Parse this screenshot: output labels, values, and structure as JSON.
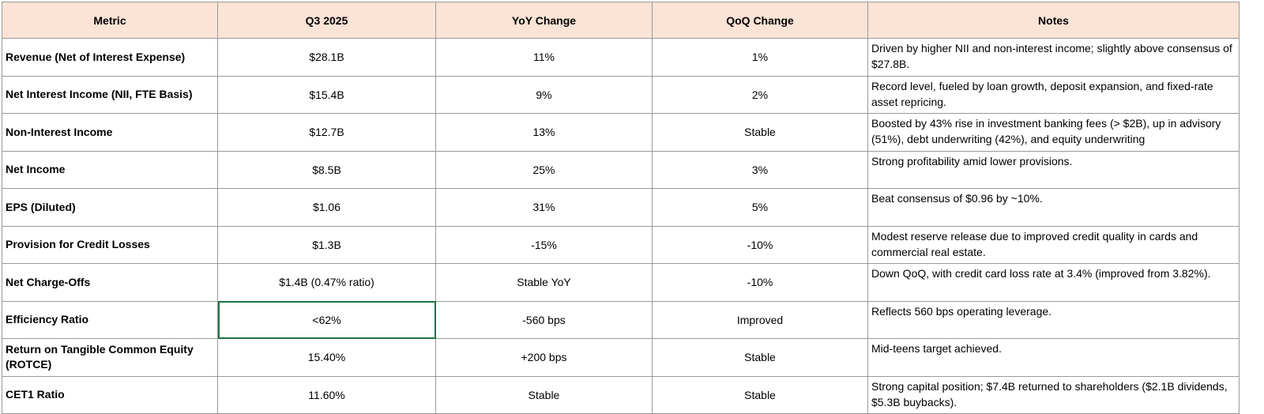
{
  "table": {
    "columns": [
      "Metric",
      "Q3 2025",
      "YoY Change",
      "QoQ Change",
      "Notes"
    ],
    "rows": [
      [
        "Revenue (Net of Interest Expense)",
        "$28.1B",
        "11%",
        "1%",
        "Driven by higher NII and non-interest income; slightly above consensus of $27.8B."
      ],
      [
        "Net Interest Income (NII, FTE Basis)",
        "$15.4B",
        "9%",
        "2%",
        "Record level, fueled by loan growth, deposit expansion, and fixed-rate asset repricing."
      ],
      [
        "Non-Interest Income",
        "$12.7B",
        "13%",
        "Stable",
        "Boosted by 43% rise in investment banking fees (> $2B), up in advisory (51%), debt underwriting (42%), and equity underwriting"
      ],
      [
        "Net Income",
        "$8.5B",
        "25%",
        "3%",
        "Strong profitability amid lower provisions."
      ],
      [
        "EPS (Diluted)",
        "$1.06",
        "31%",
        "5%",
        "Beat consensus of $0.96 by ~10%."
      ],
      [
        "Provision for Credit Losses",
        "$1.3B",
        "-15%",
        "-10%",
        "Modest reserve release due to improved credit quality in cards and commercial real estate."
      ],
      [
        "Net Charge-Offs",
        "$1.4B (0.47% ratio)",
        "Stable YoY",
        "-10%",
        "Down QoQ, with credit card loss rate at 3.4% (improved from 3.82%)."
      ],
      [
        "Efficiency Ratio",
        "<62%",
        "-560 bps",
        "Improved",
        "Reflects 560 bps operating leverage."
      ],
      [
        "Return on Tangible Common Equity (ROTCE)",
        "15.40%",
        "+200 bps",
        "Stable",
        "Mid-teens target achieved."
      ],
      [
        "CET1 Ratio",
        "11.60%",
        "Stable",
        "Stable",
        "Strong capital position; $7.4B returned to shareholders ($2.1B dividends, $5.3B buybacks)."
      ]
    ]
  }
}
